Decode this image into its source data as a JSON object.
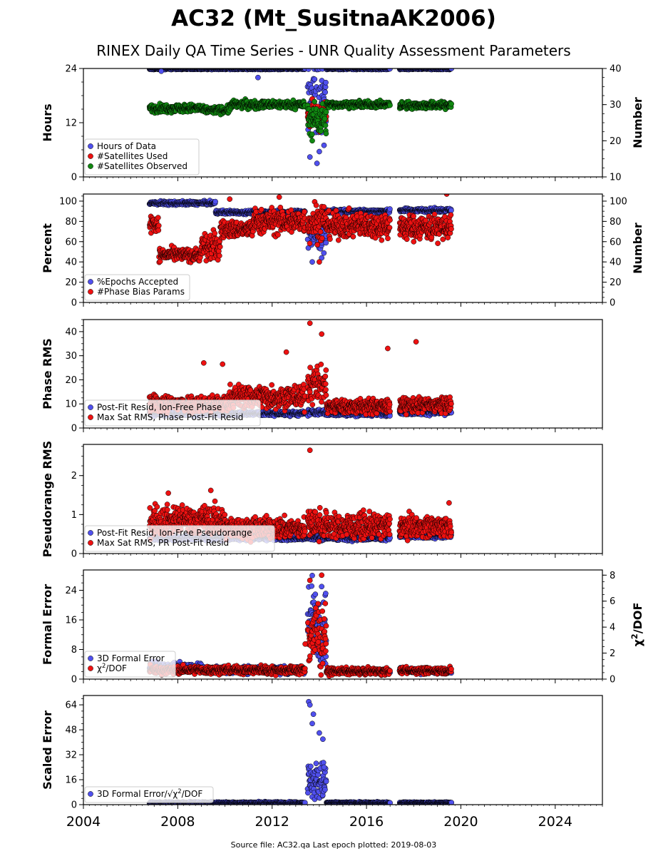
{
  "header": {
    "title": "AC32 (Mt_SusitnaAK2006)",
    "subtitle": "RINEX Daily QA Time Series - UNR Quality Assessment Parameters"
  },
  "footer": {
    "text": "Source file: AC32.qa Last epoch plotted: 2019-08-03"
  },
  "colors": {
    "blue": "#5050ee",
    "red": "#ee1111",
    "green": "#118811",
    "marker_edge": "#000000"
  },
  "chart_data": [
    {
      "type": "scatter",
      "ylabel": "Hours",
      "y2label": "Number",
      "xlim": [
        2004,
        2026
      ],
      "ylim": [
        0,
        24
      ],
      "y2lim": [
        10,
        40
      ],
      "yticks": [
        0,
        12,
        24
      ],
      "y2ticks": [
        10,
        20,
        30,
        40
      ],
      "series": [
        {
          "name": "Hours of Data",
          "color": "blue",
          "axis": "left",
          "segments": [
            [
              2006.8,
              2013.4,
              24,
              0.1
            ],
            [
              2013.5,
              2014.3,
              17,
              6
            ],
            [
              2014.3,
              2017.0,
              24,
              0.1
            ],
            [
              2017.4,
              2019.6,
              24,
              0.1
            ]
          ],
          "outliers": [
            [
              2007.3,
              23.4
            ],
            [
              2011.4,
              22
            ],
            [
              2013.6,
              4.4
            ],
            [
              2013.9,
              3
            ],
            [
              2014.0,
              5.6
            ],
            [
              2014.2,
              7
            ]
          ]
        },
        {
          "name": "#Satellites Used",
          "color": "red",
          "axis": "right",
          "segments": [
            [
              2013.5,
              2014.3,
              27,
              3
            ]
          ]
        },
        {
          "name": "#Satellites Observed",
          "color": "green",
          "axis": "right",
          "segments": [
            [
              2006.8,
              2009.0,
              29,
              0.9
            ],
            [
              2009.0,
              2010.2,
              28.5,
              0.8
            ],
            [
              2010.2,
              2013.4,
              30,
              0.9
            ],
            [
              2013.5,
              2014.3,
              26,
              3.5
            ],
            [
              2014.3,
              2017.0,
              30,
              0.7
            ],
            [
              2017.4,
              2019.6,
              29.8,
              0.8
            ]
          ],
          "outliers": [
            [
              2013.7,
              20
            ]
          ]
        }
      ]
    },
    {
      "type": "scatter",
      "ylabel": "Percent",
      "y2label": "Number",
      "xlim": [
        2004,
        2026
      ],
      "ylim": [
        0,
        107
      ],
      "y2lim": [
        0,
        107
      ],
      "yticks": [
        0,
        20,
        40,
        60,
        80,
        100
      ],
      "y2ticks": [
        0,
        20,
        40,
        60,
        80,
        100
      ],
      "series": [
        {
          "name": "%Epochs Accepted",
          "color": "blue",
          "axis": "left",
          "segments": [
            [
              2006.8,
              2009.6,
              98,
              1.5
            ],
            [
              2009.6,
              2013.4,
              89,
              1.5
            ],
            [
              2013.5,
              2014.3,
              68,
              14
            ],
            [
              2014.3,
              2017.0,
              90,
              1.5
            ],
            [
              2017.4,
              2019.6,
              91,
              1.5
            ]
          ],
          "outliers": [
            [
              2013.7,
              40
            ],
            [
              2014.1,
              44
            ]
          ]
        },
        {
          "name": "#Phase Bias Params",
          "color": "red",
          "axis": "right",
          "segments": [
            [
              2006.8,
              2007.2,
              78,
              8
            ],
            [
              2007.2,
              2009.0,
              47,
              5
            ],
            [
              2009.0,
              2009.8,
              55,
              12
            ],
            [
              2009.8,
              2011.2,
              72,
              7
            ],
            [
              2011.2,
              2013.4,
              80,
              10
            ],
            [
              2013.5,
              2014.3,
              80,
              16
            ],
            [
              2014.3,
              2017.0,
              76,
              10
            ],
            [
              2017.4,
              2019.6,
              74,
              10
            ]
          ],
          "outliers": [
            [
              2010.2,
              102
            ],
            [
              2012.3,
              104
            ],
            [
              2014.0,
              40
            ],
            [
              2019.4,
              107
            ]
          ]
        }
      ]
    },
    {
      "type": "scatter",
      "ylabel": "Phase RMS",
      "xlim": [
        2004,
        2026
      ],
      "ylim": [
        0,
        45
      ],
      "yticks": [
        0,
        10,
        20,
        30,
        40
      ],
      "series": [
        {
          "name": "Post-Fit Resid, Ion-Free Phase",
          "color": "blue",
          "axis": "left",
          "segments": [
            [
              2006.8,
              2013.4,
              6,
              0.8
            ],
            [
              2013.5,
              2014.3,
              6.5,
              1
            ],
            [
              2014.3,
              2017.0,
              6,
              0.8
            ],
            [
              2017.4,
              2019.6,
              6.5,
              0.8
            ]
          ]
        },
        {
          "name": "Max Sat RMS, Phase Post-Fit Resid",
          "color": "red",
          "axis": "left",
          "segments": [
            [
              2006.8,
              2010.2,
              10,
              3
            ],
            [
              2010.2,
              2013.4,
              13,
              4
            ],
            [
              2013.5,
              2014.3,
              18,
              6
            ],
            [
              2014.3,
              2017.0,
              9,
              2.5
            ],
            [
              2017.4,
              2019.6,
              9.5,
              2.5
            ]
          ],
          "outliers": [
            [
              2009.1,
              27
            ],
            [
              2009.9,
              26.5
            ],
            [
              2012.6,
              31.5
            ],
            [
              2013.6,
              43.5
            ],
            [
              2014.1,
              39
            ],
            [
              2016.9,
              33
            ],
            [
              2018.1,
              35.8
            ]
          ]
        }
      ]
    },
    {
      "type": "scatter",
      "ylabel": "Pseudorange RMS",
      "xlim": [
        2004,
        2026
      ],
      "ylim": [
        0,
        2.8
      ],
      "yticks": [
        0,
        1,
        2
      ],
      "series": [
        {
          "name": "Post-Fit Resid, Ion-Free Pseudorange",
          "color": "blue",
          "axis": "left",
          "segments": [
            [
              2006.8,
              2017.0,
              0.4,
              0.05
            ],
            [
              2017.4,
              2019.6,
              0.45,
              0.05
            ]
          ]
        },
        {
          "name": "Max Sat RMS, PR Post-Fit Resid",
          "color": "red",
          "axis": "left",
          "segments": [
            [
              2006.8,
              2010.0,
              0.85,
              0.3
            ],
            [
              2010.0,
              2013.4,
              0.65,
              0.22
            ],
            [
              2013.5,
              2014.3,
              0.75,
              0.3
            ],
            [
              2014.3,
              2017.0,
              0.7,
              0.25
            ],
            [
              2017.4,
              2019.6,
              0.7,
              0.22
            ]
          ],
          "outliers": [
            [
              2007.6,
              1.55
            ],
            [
              2009.4,
              1.62
            ],
            [
              2013.6,
              2.65
            ],
            [
              2019.5,
              1.3
            ]
          ]
        }
      ]
    },
    {
      "type": "scatter",
      "ylabel": "Formal Error",
      "y2label": "χ2/DOF",
      "xlim": [
        2004,
        2026
      ],
      "ylim": [
        0,
        29.5
      ],
      "y2lim": [
        0,
        8.4
      ],
      "yticks": [
        0,
        8,
        16,
        24
      ],
      "y2ticks": [
        0,
        2,
        4,
        6,
        8
      ],
      "series": [
        {
          "name": "3D Formal Error",
          "color": "blue",
          "axis": "left",
          "segments": [
            [
              2006.8,
              2009.0,
              3.2,
              1
            ],
            [
              2009.0,
              2013.4,
              2.5,
              0.8
            ],
            [
              2013.5,
              2014.3,
              15,
              8
            ],
            [
              2014.3,
              2017.0,
              2,
              0.4
            ],
            [
              2017.4,
              2019.6,
              2.2,
              0.5
            ]
          ],
          "outliers": [
            [
              2013.7,
              28
            ],
            [
              2014.1,
              25
            ]
          ]
        },
        {
          "name": "χ2/DOF",
          "color": "red",
          "axis": "right",
          "segments": [
            [
              2006.8,
              2013.4,
              0.7,
              0.25
            ],
            [
              2013.5,
              2014.3,
              3.5,
              2.2
            ],
            [
              2014.3,
              2017.0,
              0.6,
              0.2
            ],
            [
              2017.4,
              2019.6,
              0.65,
              0.2
            ]
          ],
          "outliers": [
            [
              2013.6,
              7.6
            ],
            [
              2014.1,
              8.0
            ],
            [
              2013.4,
              2.7
            ]
          ]
        }
      ]
    },
    {
      "type": "scatter",
      "ylabel": "Scaled Error",
      "xlim": [
        2004,
        2026
      ],
      "ylim": [
        0,
        70
      ],
      "yticks": [
        0,
        16,
        32,
        48,
        64
      ],
      "xticks": [
        2004,
        2008,
        2012,
        2016,
        2020,
        2024
      ],
      "series": [
        {
          "name": "3D Formal Error/√χ2/DOF",
          "color": "blue",
          "axis": "left",
          "segments": [
            [
              2006.8,
              2013.4,
              1.2,
              0.5
            ],
            [
              2013.5,
              2014.3,
              15,
              10
            ],
            [
              2014.3,
              2017.0,
              1.2,
              0.4
            ],
            [
              2017.4,
              2019.6,
              1.2,
              0.4
            ]
          ],
          "outliers": [
            [
              2013.55,
              66
            ],
            [
              2013.6,
              64
            ],
            [
              2013.75,
              58
            ],
            [
              2013.7,
              52
            ],
            [
              2014.0,
              46
            ],
            [
              2014.15,
              42
            ],
            [
              2014.2,
              24
            ]
          ]
        }
      ]
    }
  ]
}
